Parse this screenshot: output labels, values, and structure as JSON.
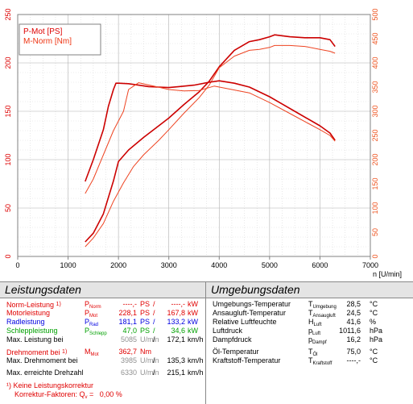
{
  "chart_data": {
    "type": "line",
    "xlabel": "n [U/min]",
    "xlim": [
      0,
      7000
    ],
    "x_ticks": [
      "0",
      "1000",
      "2000",
      "3000",
      "4000",
      "5000",
      "6000",
      "7000"
    ],
    "ylim_left": [
      0,
      250
    ],
    "y_ticks_left": [
      "0",
      "50",
      "100",
      "150",
      "200",
      "250"
    ],
    "ylim_right": [
      0,
      500
    ],
    "y_ticks_right": [
      "0",
      "50",
      "100",
      "150",
      "200",
      "250",
      "300",
      "350",
      "400",
      "450",
      "500"
    ],
    "grid": true,
    "legend": {
      "position": "top-left",
      "entries": [
        "P-Mot [PS]",
        "M-Norm [Nm]"
      ]
    },
    "series": [
      {
        "name": "P-Mot [PS]",
        "axis": "left",
        "color": "#cc0000",
        "x": [
          1340,
          1500,
          1700,
          1900,
          2000,
          2200,
          2500,
          2800,
          3000,
          3300,
          3600,
          3800,
          4000,
          4300,
          4600,
          4800,
          5000,
          5100,
          5400,
          5700,
          6000,
          6200,
          6300
        ],
        "y": [
          15,
          24,
          44,
          78,
          98,
          110,
          123,
          135,
          143,
          157,
          170,
          181,
          196,
          213,
          222,
          224,
          227,
          229,
          227,
          226,
          226,
          224,
          217
        ]
      },
      {
        "name": "P-Mot (Vergleich)",
        "axis": "left",
        "color": "#ee4422",
        "x": [
          1340,
          1500,
          1700,
          1900,
          2100,
          2300,
          2500,
          2800,
          3000,
          3300,
          3600,
          3800,
          4000,
          4300,
          4600,
          4800,
          5000,
          5100,
          5400,
          5700,
          6000,
          6200,
          6300
        ],
        "y": [
          10,
          19,
          34,
          57,
          76,
          93,
          105,
          120,
          131,
          148,
          164,
          177,
          195,
          207,
          213,
          214,
          216,
          218,
          218,
          217,
          214,
          212,
          210
        ]
      },
      {
        "name": "M-Norm [Nm]",
        "axis": "right",
        "color": "#cc0000",
        "x": [
          1340,
          1500,
          1700,
          1800,
          1900,
          1950,
          2000,
          2200,
          2400,
          2600,
          2800,
          3000,
          3200,
          3500,
          3800,
          4000,
          4300,
          4600,
          5000,
          5500,
          6000,
          6200,
          6300
        ],
        "y": [
          155,
          200,
          262,
          310,
          345,
          358,
          358,
          357,
          354,
          351,
          350,
          349,
          351,
          354,
          360,
          363,
          358,
          350,
          330,
          300,
          270,
          255,
          240
        ]
      },
      {
        "name": "M-Norm (Vergleich)",
        "axis": "right",
        "color": "#ee4422",
        "x": [
          1340,
          1500,
          1700,
          1900,
          2100,
          2200,
          2400,
          2700,
          3000,
          3300,
          3600,
          3900,
          4200,
          4600,
          5000,
          5500,
          6000,
          6200,
          6300
        ],
        "y": [
          130,
          160,
          210,
          260,
          300,
          345,
          359,
          352,
          345,
          342,
          343,
          352,
          346,
          338,
          318,
          290,
          262,
          250,
          238
        ]
      }
    ]
  },
  "leistungsdaten": {
    "title": "Leistungsdaten",
    "rows": [
      {
        "label": "Norm-Leistung",
        "note": "1)",
        "sym": "P",
        "sym_sub": "Norm",
        "v1": "----,-",
        "u1": "PS",
        "sep": "/",
        "v2": "----,-",
        "u2": "kW"
      },
      {
        "label": "Motorleistung",
        "sym": "P",
        "sym_sub": "Mot",
        "v1": "228,1",
        "u1": "PS",
        "sep": "/",
        "v2": "167,8",
        "u2": "kW"
      },
      {
        "label": "Radleistung",
        "sym": "P",
        "sym_sub": "Rad",
        "v1": "181,1",
        "u1": "PS",
        "sep": "/",
        "v2": "133,2",
        "u2": "kW"
      },
      {
        "label": "Schleppleistung",
        "sym": "P",
        "sym_sub": "Schlepp",
        "v1": "47,0",
        "u1": "PS",
        "sep": "/",
        "v2": "34,6",
        "u2": "kW"
      },
      {
        "label": "Max. Leistung bei",
        "v1": "5085",
        "u1": "U/min",
        "sep": "/",
        "v2": "172,1",
        "u2": "km/h"
      },
      {
        "label": "Drehmoment bei",
        "note": "1)",
        "sym": "M",
        "sym_sub": "Mot",
        "v1": "362,7",
        "u1": "Nm"
      },
      {
        "label": "Max. Drehmoment bei",
        "v1": "3985",
        "u1": "U/min",
        "sep": "/",
        "v2": "135,3",
        "u2": "km/h"
      },
      {
        "label": "Max. erreichte Drehzahl",
        "v1": "6330",
        "u1": "U/min",
        "sep": "/",
        "v2": "215,1",
        "u2": "km/h"
      }
    ],
    "footnote1": "¹) Keine Leistungskorrektur",
    "footnote2_prefix": "Korrektur-Faktoren: Q",
    "footnote2_sub": "v",
    "footnote2_suffix": " =   0,00 %"
  },
  "umgebungsdaten": {
    "title": "Umgebungsdaten",
    "rows": [
      {
        "label": "Umgebungs-Temperatur",
        "sym": "T",
        "sym_sub": "Umgebung",
        "value": "28,5",
        "unit": "°C"
      },
      {
        "label": "Ansaugluft-Temperatur",
        "sym": "T",
        "sym_sub": "Ansaugluft",
        "value": "24,5",
        "unit": "°C"
      },
      {
        "label": "Relative Luftfeuchte",
        "sym": "H",
        "sym_sub": "Luft",
        "value": "41,6",
        "unit": "%"
      },
      {
        "label": "Luftdruck",
        "sym": "p",
        "sym_sub": "Luft",
        "value": "1011,6",
        "unit": "hPa"
      },
      {
        "label": "Dampfdruck",
        "sym": "p",
        "sym_sub": "Dampf",
        "value": "16,2",
        "unit": "hPa"
      },
      {
        "label": "Öl-Temperatur",
        "sym": "T",
        "sym_sub": "Öl",
        "value": "75,0",
        "unit": "°C"
      },
      {
        "label": "Kraftstoff-Temperatur",
        "sym": "T",
        "sym_sub": "Kraftstoff",
        "value": "----,-",
        "unit": "°C"
      }
    ]
  }
}
